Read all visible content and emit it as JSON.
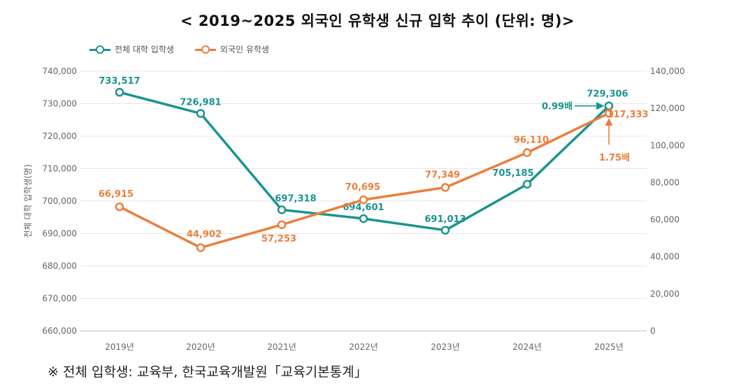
{
  "title": "< 2019~2025 외국인 유학생 신규 입학 추이 (단위: 명)>",
  "legend": [
    {
      "label": "전체 대학 입학생",
      "color": "#1a9490"
    },
    {
      "label": "외국인 유학생",
      "color": "#ec7e3b"
    }
  ],
  "source": "※ 전체 입학생: 교육부, 한국교육개발원「교육기본통계」",
  "chart_data": {
    "type": "line",
    "categories": [
      "2019년",
      "2020년",
      "2021년",
      "2022년",
      "2023년",
      "2024년",
      "2025년"
    ],
    "ylabel": "전체 대학 입학생(명)",
    "y_left": {
      "min": 660000,
      "max": 740000,
      "step": 10000,
      "ticks": [
        "660,000",
        "670,000",
        "680,000",
        "690,000",
        "700,000",
        "710,000",
        "720,000",
        "730,000",
        "740,000"
      ]
    },
    "y_right": {
      "min": 0,
      "max": 140000,
      "step": 20000,
      "ticks": [
        "0",
        "20,000",
        "40,000",
        "60,000",
        "80,000",
        "100,000",
        "120,000",
        "140,000"
      ]
    },
    "grid": true,
    "series": [
      {
        "name": "전체 대학 입학생",
        "axis": "left",
        "color": "#1a9490",
        "values": [
          733517,
          726981,
          697318,
          694601,
          691013,
          705185,
          729306
        ],
        "labels": [
          "733,517",
          "726,981",
          "697,318",
          "694,601",
          "691,013",
          "705,185",
          "729,306"
        ]
      },
      {
        "name": "외국인 유학생",
        "axis": "right",
        "color": "#ec7e3b",
        "values": [
          66915,
          44902,
          57253,
          70695,
          77349,
          96110,
          117333
        ],
        "labels": [
          "66,915",
          "44,902",
          "57,253",
          "70,695",
          "77,349",
          "96,110",
          "117,333"
        ]
      }
    ],
    "annotations": [
      {
        "text": "0.99배",
        "series": "전체 대학 입학생",
        "color": "#1a9490"
      },
      {
        "text": "1.75배",
        "series": "외국인 유학생",
        "color": "#ec7e3b"
      }
    ]
  }
}
